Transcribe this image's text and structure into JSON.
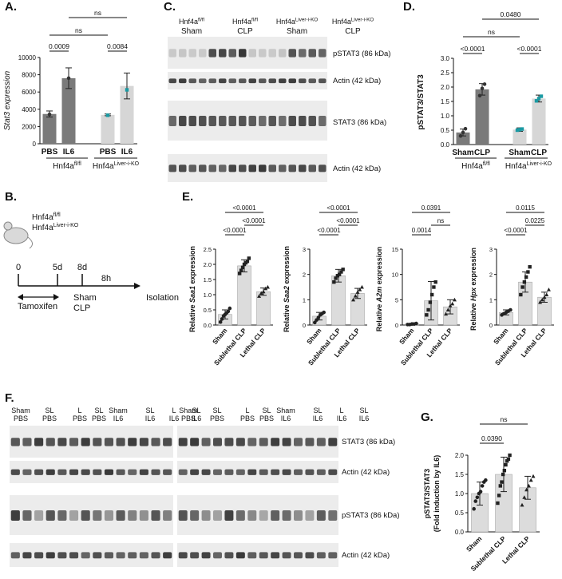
{
  "panels": {
    "A": {
      "label": "A.",
      "chart_data": {
        "type": "bar",
        "ylabel": "Stat3 expression",
        "ylim": [
          0,
          10000
        ],
        "yticks": [
          0,
          2000,
          4000,
          6000,
          8000,
          10000
        ],
        "categories": [
          "PBS",
          "IL6",
          "PBS",
          "IL6"
        ],
        "groups": [
          {
            "name": "Hnf4a",
            "sup": "fl/fl"
          },
          {
            "name": "Hnf4a",
            "sup": "Liver-i-KO"
          }
        ],
        "values": [
          3450,
          7600,
          3350,
          6700
        ],
        "errors": [
          350,
          1200,
          100,
          1500
        ],
        "points": [
          [
            3400
          ],
          [
            7600
          ],
          [
            3300
          ],
          [
            6250
          ]
        ],
        "colors": [
          "#7a7a7a",
          "#7a7a7a",
          "#d6d6d6",
          "#d6d6d6"
        ],
        "point_colors": [
          "#333333",
          "#333333",
          "#1b9aa3",
          "#1b9aa3"
        ],
        "annotations": [
          {
            "text": "0.0009",
            "from": 0,
            "to": 1
          },
          {
            "text": "0.0084",
            "from": 2,
            "to": 3
          },
          {
            "text": "ns",
            "from": 0,
            "to": 2
          },
          {
            "text": "ns",
            "from": 1,
            "to": 3
          }
        ]
      }
    },
    "B": {
      "label": "B.",
      "mouse_lines": [
        {
          "name": "Hnf4a",
          "sup": "fl/fl"
        },
        {
          "name": "Hnf4a",
          "sup": "Liver-i-KO"
        }
      ],
      "timepoints": [
        "0",
        "5d",
        "8d",
        "8h"
      ],
      "tamoxifen": "Tamoxifen",
      "treatment": [
        "Sham",
        "CLP"
      ],
      "isolation": "Isolation"
    },
    "C": {
      "label": "C.",
      "groups": [
        {
          "name": "Hnf4a",
          "sup": "fl/fl",
          "sub": "Sham"
        },
        {
          "name": "Hnf4a",
          "sup": "fl/fl",
          "sub": "CLP"
        },
        {
          "name": "Hnf4a",
          "sup": "Liver-i-KO",
          "sub": "Sham"
        },
        {
          "name": "Hnf4a",
          "sup": "Liver-i-KO",
          "sub": "CLP"
        }
      ],
      "blots": [
        "pSTAT3 (86 kDa)",
        "Actin (42 kDa)",
        "STAT3 (86 kDa)",
        "Actin (42 kDa)"
      ]
    },
    "D": {
      "label": "D.",
      "chart_data": {
        "type": "bar",
        "ylabel": "pSTAT3/STAT3",
        "ylim": [
          0,
          3
        ],
        "yticks": [
          0.0,
          0.5,
          1.0,
          1.5,
          2.0,
          2.5,
          3.0
        ],
        "ytick_labels": [
          "0.0",
          "0.5",
          "1.0",
          "1.5",
          "2.0",
          "2.5",
          "3.0"
        ],
        "categories": [
          "Sham",
          "CLP",
          "Sham",
          "CLP"
        ],
        "groups": [
          {
            "name": "Hnf4a",
            "sup": "fl/fl"
          },
          {
            "name": "Hnf4a",
            "sup": "Liver-i-KO"
          }
        ],
        "values": [
          0.42,
          1.92,
          0.52,
          1.6
        ],
        "errors": [
          0.12,
          0.2,
          0.06,
          0.12
        ],
        "points": [
          [
            0.3,
            0.42,
            0.55
          ],
          [
            1.7,
            1.95,
            2.1
          ],
          [
            0.5,
            0.52,
            0.54
          ],
          [
            1.52,
            1.6,
            1.68
          ]
        ],
        "colors": [
          "#7a7a7a",
          "#7a7a7a",
          "#d6d6d6",
          "#d6d6d6"
        ],
        "point_colors": [
          "#333333",
          "#333333",
          "#1b9aa3",
          "#1b9aa3"
        ],
        "annotations": [
          {
            "text": "<0.0001",
            "from": 0,
            "to": 1
          },
          {
            "text": "<0.0001",
            "from": 2,
            "to": 3
          },
          {
            "text": "ns",
            "from": 0,
            "to": 2
          },
          {
            "text": "0.0480",
            "from": 1,
            "to": 3
          }
        ]
      }
    },
    "E": {
      "label": "E.",
      "charts": [
        {
          "type": "bar",
          "ylabel_pre": "Relative ",
          "ylabel_gene": "Saa1",
          "ylabel_post": " expression",
          "ylim": [
            0,
            2.5
          ],
          "yticks": [
            0,
            0.5,
            1,
            1.5,
            2,
            2.5
          ],
          "ytick_labels": [
            "0.0",
            "0.5",
            "1.0",
            "1.5",
            "2.0",
            "2.5"
          ],
          "categories": [
            "Sham",
            "Sublethal CLP",
            "Lethal CLP"
          ],
          "values": [
            0.35,
            1.95,
            1.1
          ],
          "errors": [
            0.15,
            0.2,
            0.12
          ],
          "points": [
            [
              0.1,
              0.2,
              0.3,
              0.35,
              0.4,
              0.45,
              0.55
            ],
            [
              1.7,
              1.8,
              1.9,
              2.0,
              2.05,
              2.1,
              2.2
            ],
            [
              0.95,
              1.05,
              1.1,
              1.2,
              1.25
            ]
          ],
          "annotations": [
            {
              "text": "<0.0001",
              "from": 0,
              "to": 1
            },
            {
              "text": "<0.0001",
              "from": 1,
              "to": 2
            },
            {
              "text": "<0.0001",
              "from": 0,
              "to": 2
            }
          ]
        },
        {
          "type": "bar",
          "ylabel_pre": "Relative ",
          "ylabel_gene": "Saa2",
          "ylabel_post": " expression",
          "ylim": [
            0,
            3
          ],
          "yticks": [
            0,
            1,
            2,
            3
          ],
          "ytick_labels": [
            "0",
            "1",
            "2",
            "3"
          ],
          "categories": [
            "Sham",
            "Sublethal CLP",
            "Lethal CLP"
          ],
          "values": [
            0.35,
            1.95,
            1.25
          ],
          "errors": [
            0.15,
            0.25,
            0.2
          ],
          "points": [
            [
              0.1,
              0.2,
              0.3,
              0.4,
              0.45,
              0.5
            ],
            [
              1.7,
              1.85,
              1.95,
              2.0,
              2.1,
              2.2
            ],
            [
              1.0,
              1.15,
              1.3,
              1.4,
              1.5
            ]
          ],
          "annotations": [
            {
              "text": "<0.0001",
              "from": 0,
              "to": 1
            },
            {
              "text": "<0.0001",
              "from": 1,
              "to": 2
            },
            {
              "text": "<0.0001",
              "from": 0,
              "to": 2
            }
          ]
        },
        {
          "type": "bar",
          "ylabel_pre": "Relative ",
          "ylabel_gene": "A2m",
          "ylabel_post": " expression",
          "ylim": [
            0,
            15
          ],
          "yticks": [
            0,
            5,
            10,
            15
          ],
          "ytick_labels": [
            "0",
            "5",
            "10",
            "15"
          ],
          "categories": [
            "Sham",
            "Sublethal CLP",
            "Lethal CLP"
          ],
          "values": [
            0.2,
            4.8,
            3.6
          ],
          "errors": [
            0.1,
            3.8,
            1.4
          ],
          "points": [
            [
              0.1,
              0.1,
              0.2,
              0.2,
              0.3
            ],
            [
              2.0,
              3.0,
              4.5,
              6.0,
              7.5,
              8.5
            ],
            [
              2.2,
              3.0,
              3.8,
              4.2,
              5.0
            ]
          ],
          "annotations": [
            {
              "text": "0.0014",
              "from": 0,
              "to": 1
            },
            {
              "text": "ns",
              "from": 1,
              "to": 2
            },
            {
              "text": "0.0391",
              "from": 0,
              "to": 2
            }
          ]
        },
        {
          "type": "bar",
          "ylabel_pre": "Relative ",
          "ylabel_gene": "Hpx",
          "ylabel_post": " expression",
          "ylim": [
            0,
            3
          ],
          "yticks": [
            0,
            1,
            2,
            3
          ],
          "ytick_labels": [
            "0",
            "1",
            "2",
            "3"
          ],
          "categories": [
            "Sham",
            "Sublethal CLP",
            "Lethal CLP"
          ],
          "values": [
            0.5,
            1.7,
            1.1
          ],
          "errors": [
            0.1,
            0.4,
            0.2
          ],
          "points": [
            [
              0.4,
              0.45,
              0.5,
              0.55,
              0.6
            ],
            [
              1.2,
              1.5,
              1.7,
              1.9,
              2.1,
              2.3
            ],
            [
              0.9,
              1.0,
              1.1,
              1.2,
              1.4
            ]
          ],
          "annotations": [
            {
              "text": "<0.0001",
              "from": 0,
              "to": 1
            },
            {
              "text": "0.0225",
              "from": 1,
              "to": 2
            },
            {
              "text": "0.0115",
              "from": 0,
              "to": 2
            }
          ]
        }
      ]
    },
    "F": {
      "label": "F.",
      "lane_groups_left": [
        "Sham PBS",
        "SL PBS",
        "L PBS",
        "SL PBS",
        "Sham IL6",
        "SL IL6",
        "L IL6",
        "SL IL6"
      ],
      "lane_groups_right": [
        "Sham PBS",
        "SL PBS",
        "L PBS",
        "SL PBS",
        "Sham IL6",
        "SL IL6",
        "L IL6",
        "SL IL6"
      ],
      "blots": [
        "STAT3 (86 kDa)",
        "Actin (42 kDa)",
        "pSTAT3 (86 kDa)",
        "Actin (42 kDa)"
      ]
    },
    "G": {
      "label": "G.",
      "chart_data": {
        "type": "bar",
        "ylabel": "pSTAT3/STAT3",
        "ylabel2": "(Fold induction by IL6)",
        "ylim": [
          0,
          2.0
        ],
        "yticks": [
          0,
          0.5,
          1,
          1.5,
          2
        ],
        "ytick_labels": [
          "0.0",
          "0.5",
          "1.0",
          "1.5",
          "2.0"
        ],
        "categories": [
          "Sham",
          "Sublethal CLP",
          "Lethal CLP"
        ],
        "values": [
          1.0,
          1.5,
          1.15
        ],
        "errors": [
          0.3,
          0.45,
          0.3
        ],
        "points": [
          [
            0.6,
            0.8,
            0.9,
            1.0,
            1.05,
            1.2,
            1.3,
            1.35
          ],
          [
            0.75,
            0.95,
            1.2,
            1.3,
            1.5,
            1.6,
            1.75,
            1.85,
            1.9,
            2.0
          ],
          [
            0.7,
            0.9,
            1.1,
            1.2,
            1.35,
            1.45
          ]
        ],
        "annotations": [
          {
            "text": "0.0390",
            "from": 0,
            "to": 1
          },
          {
            "text": "ns",
            "from": 0,
            "to": 2
          }
        ]
      }
    }
  }
}
